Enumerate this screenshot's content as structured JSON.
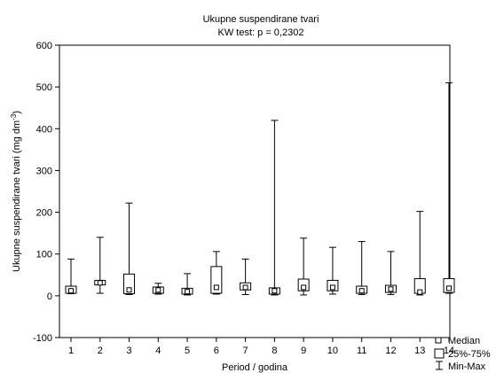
{
  "chart_data": {
    "type": "boxplot",
    "title": "Ukupne suspendirane tvari",
    "subtitle": "KW test: p = 0,2302",
    "xlabel": "Period / godina",
    "ylabel_main": "Ukupne suspendirane tvari (mg dm",
    "ylabel_sup": "-3",
    "ylabel_close": ")",
    "ylim": [
      -100,
      600
    ],
    "yticks": [
      "-100",
      "0",
      "100",
      "200",
      "300",
      "400",
      "500",
      "600"
    ],
    "categories": [
      "1",
      "2",
      "3",
      "4",
      "5",
      "6",
      "7",
      "8",
      "9",
      "10",
      "11",
      "12",
      "13",
      "14"
    ],
    "boxes": [
      {
        "min": 5,
        "q1": 6,
        "median": 12,
        "q3": 23,
        "max": 88
      },
      {
        "min": 6,
        "q1": 26,
        "median": 31,
        "q3": 37,
        "max": 140
      },
      {
        "min": 3,
        "q1": 5,
        "median": 14,
        "q3": 52,
        "max": 222
      },
      {
        "min": 4,
        "q1": 6,
        "median": 14,
        "q3": 21,
        "max": 30
      },
      {
        "min": 2,
        "q1": 4,
        "median": 10,
        "q3": 18,
        "max": 53
      },
      {
        "min": 4,
        "q1": 6,
        "median": 20,
        "q3": 70,
        "max": 106
      },
      {
        "min": 3,
        "q1": 14,
        "median": 20,
        "q3": 31,
        "max": 88
      },
      {
        "min": 2,
        "q1": 4,
        "median": 12,
        "q3": 19,
        "max": 420
      },
      {
        "min": 2,
        "q1": 12,
        "median": 20,
        "q3": 40,
        "max": 138
      },
      {
        "min": 4,
        "q1": 12,
        "median": 20,
        "q3": 37,
        "max": 116
      },
      {
        "min": 3,
        "q1": 6,
        "median": 12,
        "q3": 23,
        "max": 130
      },
      {
        "min": 3,
        "q1": 8,
        "median": 16,
        "q3": 25,
        "max": 106
      },
      {
        "min": 2,
        "q1": 6,
        "median": 9,
        "q3": 41,
        "max": 202
      },
      {
        "min": 6,
        "q1": 8,
        "median": 18,
        "q3": 41,
        "max": 510
      }
    ],
    "legend": [
      "Median",
      "25%-75%",
      "Min-Max"
    ],
    "legend_position": "bottom-right",
    "grid": false
  }
}
